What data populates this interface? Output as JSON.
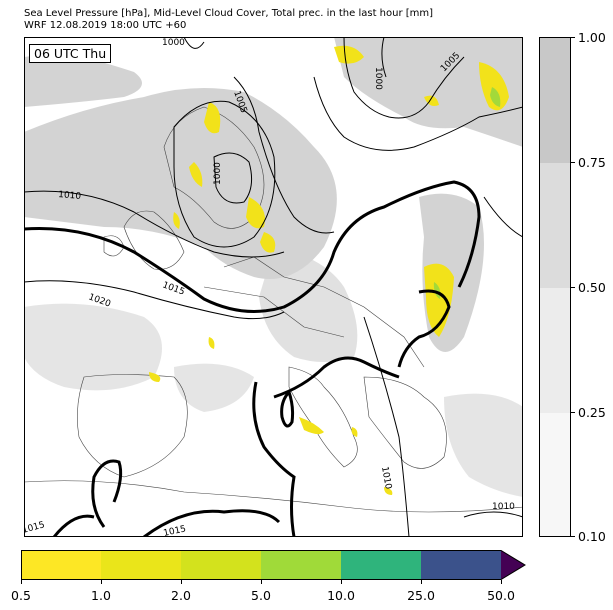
{
  "title_line1": "Sea Level Pressure [hPa], Mid-Level Cloud Cover, Total prec. in the last hour [mm]",
  "title_line2": "WRF 12.08.2019 18:00 UTC +60",
  "time_label": "06 UTC Thu",
  "isobar_labels": [
    "1000",
    "1000",
    "1005",
    "1005",
    "1000",
    "1010",
    "1015",
    "1020",
    "1015",
    "1015",
    "1010",
    "1010"
  ],
  "cloud_colorbar": {
    "ticks": [
      "1.00",
      "0.75",
      "0.50",
      "0.25",
      "0.10"
    ],
    "colors": [
      "#c8c8c8",
      "#dcdcdc",
      "#ececec",
      "#f7f7f7"
    ]
  },
  "precip_colorbar": {
    "ticks": [
      "0.5",
      "1.0",
      "2.0",
      "5.0",
      "10.0",
      "25.0",
      "50.0"
    ],
    "colors": [
      "#fde725",
      "#eae51a",
      "#d3e21d",
      "#a0da39",
      "#2fb47c",
      "#3b528b",
      "#440154"
    ]
  }
}
